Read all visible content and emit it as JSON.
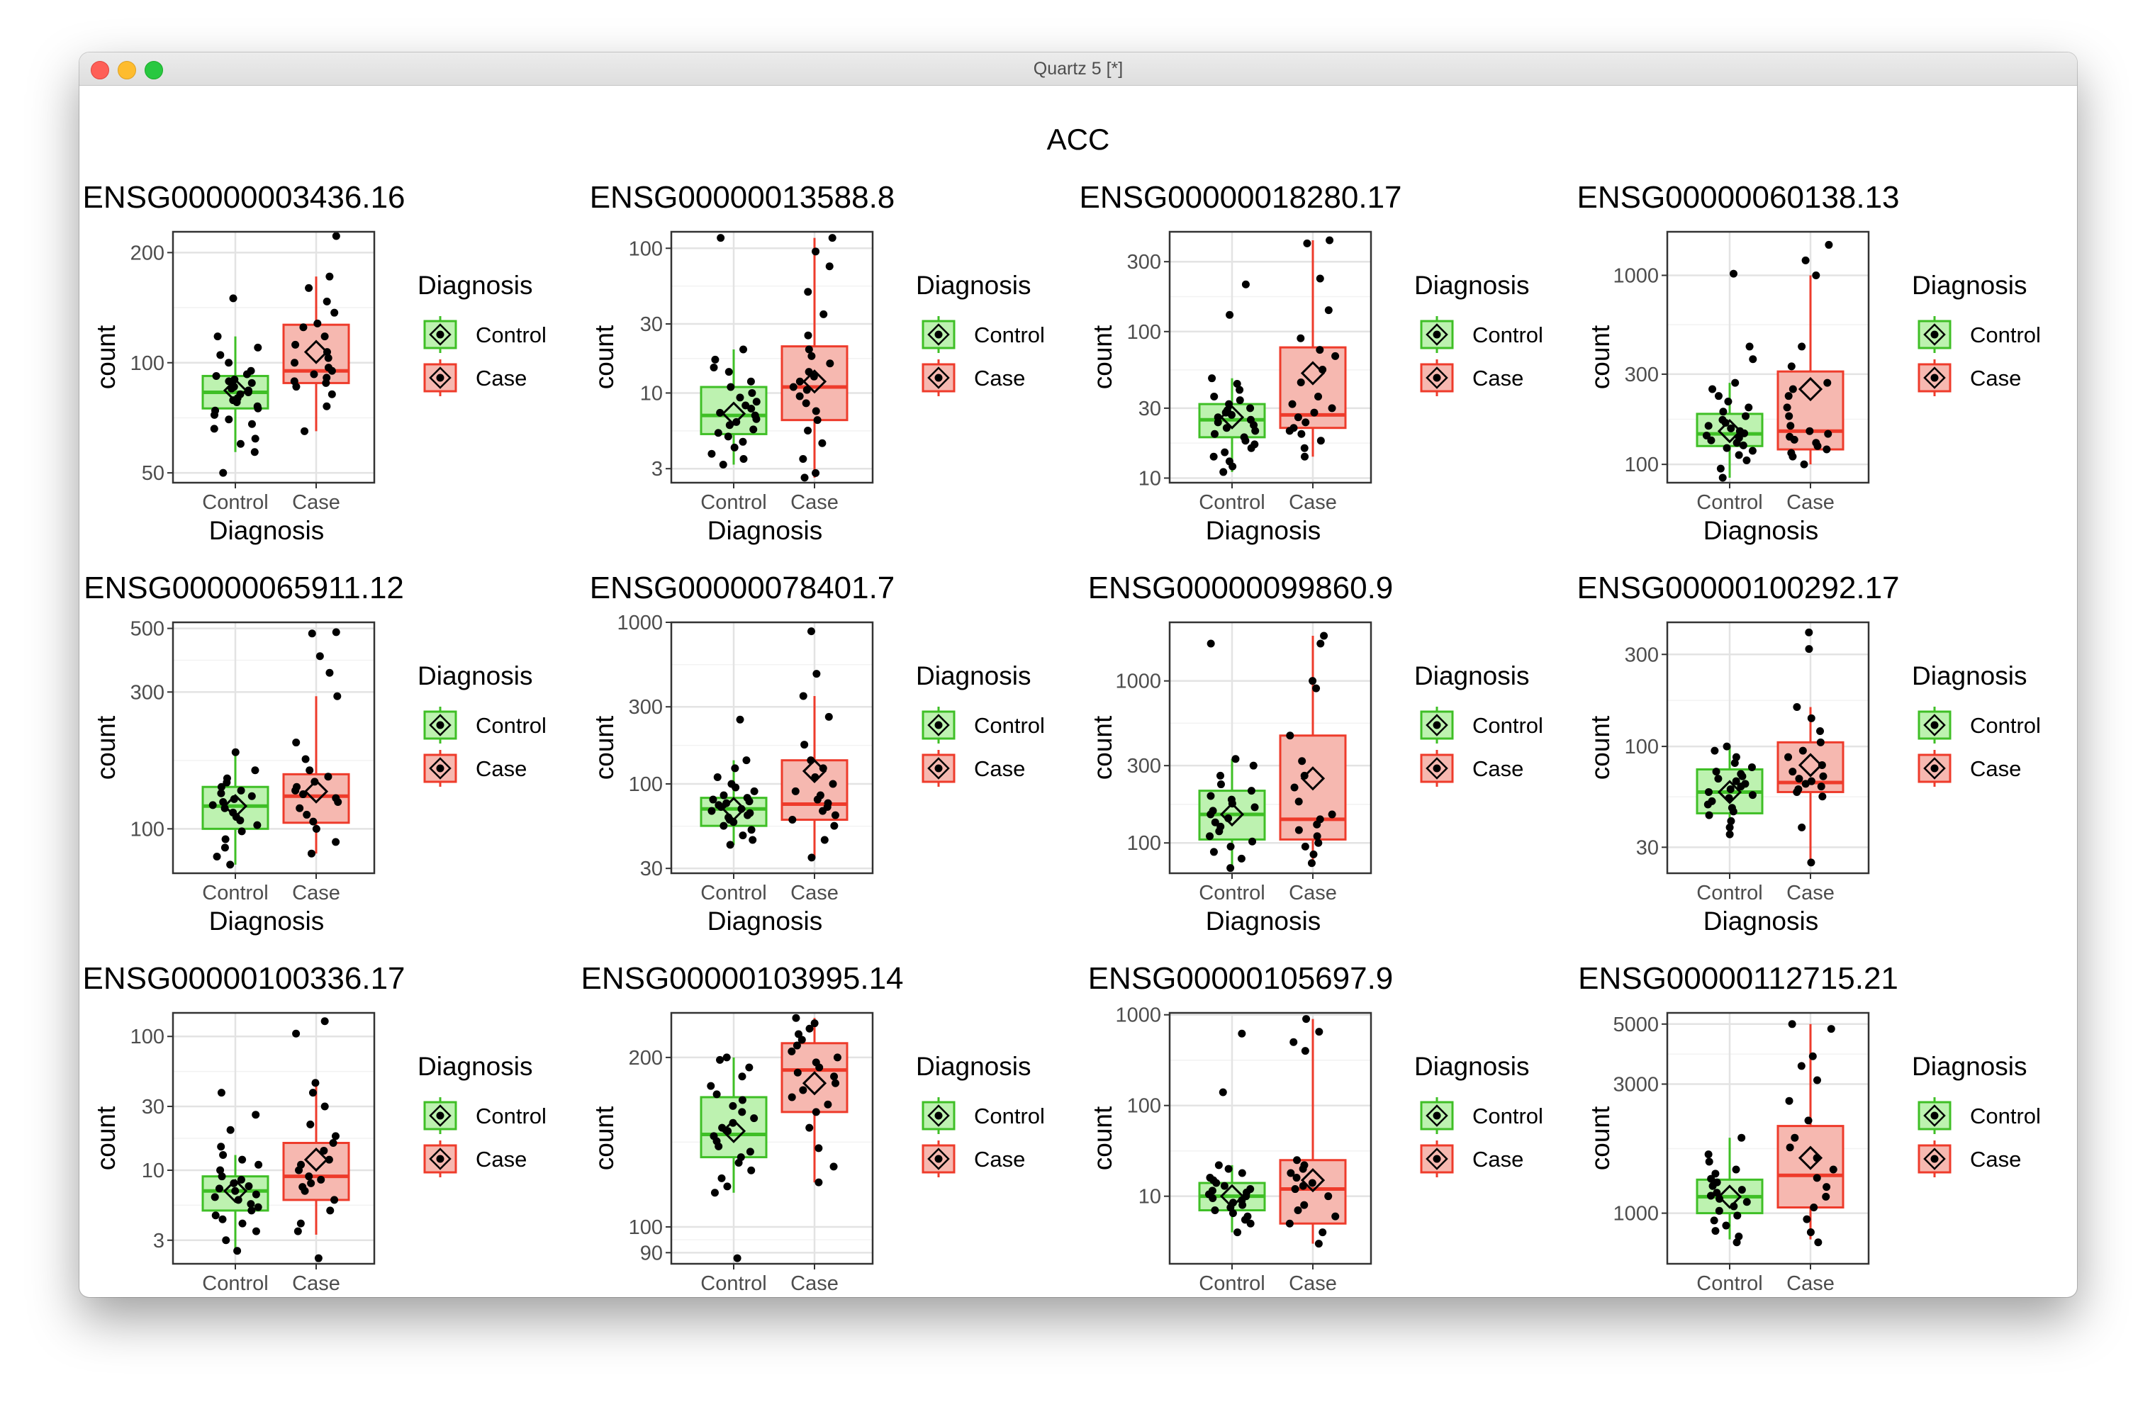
{
  "window": {
    "title": "Quartz 5 [*]"
  },
  "figure_title": "ACC",
  "colors": {
    "control": "#3fbf26",
    "case": "#ee3b2b",
    "control_fill": "#bdf2b0",
    "case_fill": "#f6b8b0"
  },
  "legend": {
    "title": "Diagnosis",
    "items": [
      "Control",
      "Case"
    ]
  },
  "chart_data": [
    {
      "type": "box",
      "title": "ENSG00000003436.16",
      "xlabel": "Diagnosis",
      "ylabel": "count",
      "scale": "log",
      "ylim": [
        47,
        228
      ],
      "yticks": [
        50,
        100,
        200
      ],
      "categories": [
        "Control",
        "Case"
      ],
      "boxes": [
        {
          "q1": 75,
          "median": 83,
          "q3": 92,
          "whisker_low": 57,
          "whisker_high": 118,
          "mean": 84,
          "points": [
            50,
            57,
            60,
            62,
            66,
            68,
            70,
            72,
            74,
            75,
            76,
            78,
            79,
            80,
            82,
            83,
            84,
            85,
            86,
            88,
            89,
            90,
            92,
            93,
            95,
            100,
            105,
            110,
            118,
            150
          ]
        },
        {
          "q1": 88,
          "median": 95,
          "q3": 127,
          "whisker_low": 65,
          "whisker_high": 172,
          "mean": 107,
          "points": [
            65,
            76,
            82,
            86,
            88,
            89,
            91,
            93,
            95,
            97,
            100,
            103,
            107,
            112,
            118,
            125,
            128,
            137,
            147,
            160,
            172,
            222
          ]
        }
      ]
    },
    {
      "type": "box",
      "title": "ENSG00000013588.8",
      "xlabel": "Diagnosis",
      "ylabel": "count",
      "scale": "log",
      "ylim": [
        2.4,
        130
      ],
      "yticks": [
        3,
        10,
        30,
        100
      ],
      "categories": [
        "Control",
        "Case"
      ],
      "boxes": [
        {
          "q1": 5.2,
          "median": 7,
          "q3": 11,
          "whisker_low": 3.2,
          "whisker_high": 20,
          "mean": 7.2,
          "points": [
            3.2,
            3.5,
            3.8,
            4.2,
            4.6,
            5,
            5.3,
            5.6,
            6,
            6.3,
            6.6,
            7,
            7.3,
            7.8,
            8.2,
            8.7,
            9.3,
            10,
            11,
            12,
            14,
            15,
            17,
            20,
            118
          ]
        },
        {
          "q1": 6.5,
          "median": 11,
          "q3": 21,
          "whisker_low": 2.6,
          "whisker_high": 118,
          "mean": 12,
          "points": [
            2.6,
            2.8,
            3.5,
            4.5,
            5.5,
            6.5,
            7.5,
            8.5,
            9.5,
            10.5,
            11,
            12,
            13,
            14,
            16,
            18,
            20,
            25,
            35,
            50,
            75,
            95,
            118
          ]
        }
      ]
    },
    {
      "type": "box",
      "title": "ENSG00000018280.17",
      "xlabel": "Diagnosis",
      "ylabel": "count",
      "scale": "log",
      "ylim": [
        9.3,
        480
      ],
      "yticks": [
        10,
        30,
        100,
        300
      ],
      "categories": [
        "Control",
        "Case"
      ],
      "boxes": [
        {
          "q1": 19,
          "median": 25,
          "q3": 32,
          "whisker_low": 11,
          "whisker_high": 48,
          "mean": 26,
          "points": [
            11,
            12,
            13,
            14,
            15,
            16,
            17,
            18,
            19,
            20,
            21,
            22,
            23,
            24,
            25,
            26,
            27,
            28,
            29,
            30,
            32,
            34,
            36,
            40,
            44,
            48,
            130,
            210
          ]
        },
        {
          "q1": 22,
          "median": 27,
          "q3": 78,
          "whisker_low": 14,
          "whisker_high": 420,
          "mean": 52,
          "points": [
            14,
            16,
            18,
            20,
            21,
            22,
            24,
            26,
            28,
            30,
            32,
            36,
            45,
            55,
            68,
            75,
            90,
            140,
            230,
            400,
            420
          ]
        }
      ]
    },
    {
      "type": "box",
      "title": "ENSG00000060138.13",
      "xlabel": "Diagnosis",
      "ylabel": "count",
      "scale": "log",
      "ylim": [
        80,
        1700
      ],
      "yticks": [
        100,
        300,
        1000
      ],
      "categories": [
        "Control",
        "Case"
      ],
      "boxes": [
        {
          "q1": 125,
          "median": 145,
          "q3": 185,
          "whisker_low": 85,
          "whisker_high": 270,
          "mean": 150,
          "points": [
            85,
            95,
            105,
            112,
            118,
            122,
            126,
            130,
            134,
            138,
            142,
            146,
            150,
            155,
            160,
            166,
            172,
            180,
            190,
            200,
            215,
            230,
            250,
            270,
            360,
            420,
            1020
          ]
        },
        {
          "q1": 120,
          "median": 150,
          "q3": 310,
          "whisker_low": 100,
          "whisker_high": 1000,
          "mean": 250,
          "points": [
            100,
            110,
            115,
            120,
            125,
            130,
            135,
            140,
            145,
            150,
            160,
            180,
            200,
            230,
            250,
            270,
            330,
            420,
            1000,
            1200,
            1450
          ]
        }
      ]
    },
    {
      "type": "box",
      "title": "ENSG00000065911.12",
      "xlabel": "Diagnosis",
      "ylabel": "count",
      "scale": "log",
      "ylim": [
        70,
        525
      ],
      "yticks": [
        100,
        300,
        500
      ],
      "categories": [
        "Control",
        "Case"
      ],
      "boxes": [
        {
          "q1": 100,
          "median": 120,
          "q3": 140,
          "whisker_low": 75,
          "whisker_high": 185,
          "mean": 120,
          "points": [
            75,
            80,
            86,
            92,
            98,
            103,
            107,
            110,
            114,
            118,
            121,
            124,
            127,
            130,
            133,
            136,
            140,
            145,
            150,
            160,
            185
          ]
        },
        {
          "q1": 105,
          "median": 130,
          "q3": 155,
          "whisker_low": 82,
          "whisker_high": 290,
          "mean": 135,
          "points": [
            82,
            90,
            100,
            106,
            112,
            118,
            124,
            128,
            132,
            136,
            140,
            146,
            152,
            160,
            175,
            200,
            290,
            350,
            400,
            480,
            485
          ]
        }
      ]
    },
    {
      "type": "box",
      "title": "ENSG00000078401.7",
      "xlabel": "Diagnosis",
      "ylabel": "count",
      "scale": "log",
      "ylim": [
        28,
        1000
      ],
      "yticks": [
        30,
        100,
        300,
        1000
      ],
      "categories": [
        "Control",
        "Case"
      ],
      "boxes": [
        {
          "q1": 55,
          "median": 70,
          "q3": 82,
          "whisker_low": 42,
          "whisker_high": 140,
          "mean": 70,
          "points": [
            42,
            45,
            48,
            52,
            55,
            58,
            60,
            62,
            64,
            66,
            68,
            70,
            72,
            74,
            76,
            78,
            80,
            82,
            85,
            90,
            95,
            100,
            110,
            125,
            140,
            250
          ]
        },
        {
          "q1": 60,
          "median": 75,
          "q3": 140,
          "whisker_low": 35,
          "whisker_high": 350,
          "mean": 120,
          "points": [
            35,
            45,
            55,
            60,
            64,
            68,
            72,
            76,
            80,
            85,
            90,
            100,
            110,
            125,
            140,
            175,
            260,
            350,
            480,
            880
          ]
        }
      ]
    },
    {
      "type": "box",
      "title": "ENSG00000099860.9",
      "xlabel": "Diagnosis",
      "ylabel": "count",
      "scale": "log",
      "ylim": [
        65,
        2300
      ],
      "yticks": [
        100,
        300,
        1000
      ],
      "categories": [
        "Control",
        "Case"
      ],
      "boxes": [
        {
          "q1": 105,
          "median": 150,
          "q3": 210,
          "whisker_low": 70,
          "whisker_high": 330,
          "mean": 150,
          "points": [
            70,
            80,
            88,
            95,
            102,
            110,
            118,
            126,
            134,
            142,
            150,
            158,
            166,
            175,
            185,
            195,
            210,
            230,
            260,
            300,
            330,
            1700
          ]
        },
        {
          "q1": 105,
          "median": 140,
          "q3": 460,
          "whisker_low": 75,
          "whisker_high": 1900,
          "mean": 250,
          "points": [
            75,
            85,
            95,
            100,
            110,
            120,
            130,
            140,
            150,
            180,
            220,
            260,
            320,
            460,
            900,
            1000,
            1700,
            1900
          ]
        }
      ]
    },
    {
      "type": "box",
      "title": "ENSG00000100292.17",
      "xlabel": "Diagnosis",
      "ylabel": "count",
      "scale": "log",
      "ylim": [
        22,
        440
      ],
      "yticks": [
        30,
        100,
        300
      ],
      "categories": [
        "Control",
        "Case"
      ],
      "boxes": [
        {
          "q1": 45,
          "median": 58,
          "q3": 76,
          "whisker_low": 35,
          "whisker_high": 100,
          "mean": 58,
          "points": [
            35,
            38,
            41,
            44,
            46,
            48,
            50,
            52,
            54,
            56,
            58,
            60,
            62,
            64,
            66,
            68,
            70,
            72,
            74,
            78,
            82,
            88,
            95,
            100
          ]
        },
        {
          "q1": 58,
          "median": 65,
          "q3": 105,
          "whisker_low": 25,
          "whisker_high": 160,
          "mean": 80,
          "points": [
            25,
            38,
            55,
            58,
            60,
            62,
            64,
            66,
            68,
            70,
            74,
            80,
            88,
            95,
            105,
            120,
            140,
            160,
            320,
            390
          ]
        }
      ]
    },
    {
      "type": "box",
      "title": "ENSG00000100336.17",
      "xlabel": "Diagnosis",
      "ylabel": "count",
      "scale": "log",
      "ylim": [
        2,
        150
      ],
      "yticks": [
        3,
        10,
        30,
        100
      ],
      "categories": [
        "Control",
        "Case"
      ],
      "boxes": [
        {
          "q1": 5,
          "median": 7,
          "q3": 9,
          "whisker_low": 2.5,
          "whisker_high": 13,
          "mean": 7,
          "points": [
            2.5,
            3,
            3.5,
            4,
            4.3,
            4.6,
            5,
            5.3,
            5.6,
            6,
            6.3,
            6.6,
            7,
            7.3,
            7.6,
            8,
            8.5,
            9,
            10,
            11,
            12,
            13,
            15,
            20,
            26,
            38
          ]
        },
        {
          "q1": 6,
          "median": 9,
          "q3": 16,
          "whisker_low": 3.3,
          "whisker_high": 45,
          "mean": 12,
          "points": [
            2.2,
            3.5,
            4,
            5,
            6,
            7,
            7.5,
            8,
            8.5,
            9,
            10,
            11,
            12,
            14,
            16,
            18,
            22,
            30,
            38,
            45,
            105,
            130
          ]
        }
      ]
    },
    {
      "type": "box",
      "title": "ENSG00000103995.14",
      "xlabel": "Diagnosis",
      "ylabel": "count",
      "scale": "log",
      "ylim": [
        86,
        240
      ],
      "yticks": [
        90,
        100,
        200
      ],
      "categories": [
        "Control",
        "Case"
      ],
      "boxes": [
        {
          "q1": 133,
          "median": 146,
          "q3": 170,
          "whisker_low": 115,
          "whisker_high": 200,
          "mean": 148,
          "points": [
            88,
            115,
            118,
            122,
            126,
            130,
            133,
            136,
            139,
            142,
            145,
            148,
            150,
            153,
            156,
            160,
            164,
            168,
            172,
            178,
            185,
            192,
            198,
            200
          ]
        },
        {
          "q1": 160,
          "median": 190,
          "q3": 212,
          "whisker_low": 120,
          "whisker_high": 235,
          "mean": 180,
          "points": [
            120,
            128,
            138,
            150,
            160,
            165,
            170,
            175,
            180,
            185,
            188,
            192,
            196,
            200,
            205,
            210,
            215,
            220,
            225,
            230,
            235
          ]
        }
      ]
    },
    {
      "type": "box",
      "title": "ENSG00000105697.9",
      "xlabel": "Diagnosis",
      "ylabel": "count",
      "scale": "log",
      "ylim": [
        1.8,
        1050
      ],
      "yticks": [
        10,
        100,
        1000
      ],
      "categories": [
        "Control",
        "Case"
      ],
      "boxes": [
        {
          "q1": 7,
          "median": 10,
          "q3": 14,
          "whisker_low": 4,
          "whisker_high": 22,
          "mean": 10,
          "points": [
            4,
            5,
            5.5,
            6,
            6.5,
            7,
            7.5,
            8,
            8.5,
            9,
            9.5,
            10,
            10.5,
            11,
            11.5,
            12,
            13,
            14,
            15,
            16,
            18,
            20,
            22,
            140,
            620
          ]
        },
        {
          "q1": 5,
          "median": 12,
          "q3": 25,
          "whisker_low": 3,
          "whisker_high": 900,
          "mean": 15,
          "points": [
            3,
            4,
            5,
            6,
            7,
            8,
            10,
            12,
            13,
            14,
            16,
            18,
            20,
            22,
            25,
            400,
            500,
            650,
            900
          ]
        }
      ]
    },
    {
      "type": "box",
      "title": "ENSG00000112715.21",
      "xlabel": "Diagnosis",
      "ylabel": "count",
      "scale": "log",
      "ylim": [
        650,
        5500
      ],
      "yticks": [
        1000,
        3000,
        5000
      ],
      "categories": [
        "Control",
        "Case"
      ],
      "boxes": [
        {
          "q1": 1000,
          "median": 1150,
          "q3": 1330,
          "whisker_low": 800,
          "whisker_high": 1900,
          "mean": 1150,
          "points": [
            780,
            820,
            860,
            900,
            940,
            980,
            1020,
            1060,
            1100,
            1130,
            1160,
            1190,
            1220,
            1260,
            1300,
            1340,
            1400,
            1450,
            1550,
            1650,
            1900
          ]
        },
        {
          "q1": 1050,
          "median": 1380,
          "q3": 2100,
          "whisker_low": 800,
          "whisker_high": 5000,
          "mean": 1600,
          "points": [
            780,
            850,
            950,
            1050,
            1150,
            1250,
            1350,
            1450,
            1600,
            1750,
            1900,
            2200,
            2600,
            3100,
            3500,
            3800,
            4800,
            5000
          ]
        }
      ]
    }
  ]
}
